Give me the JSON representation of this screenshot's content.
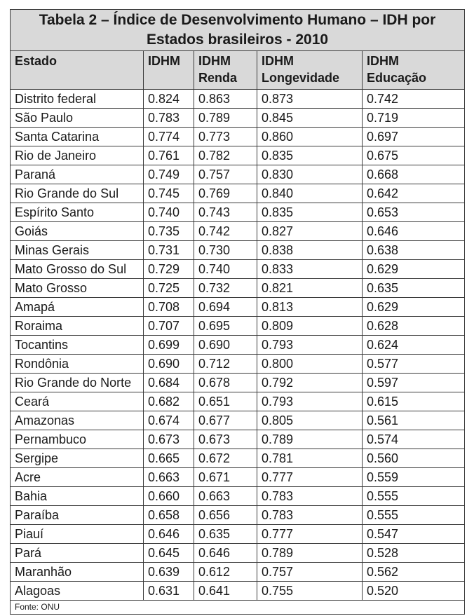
{
  "table": {
    "title": "Tabela 2 – Índice de Desenvolvimento Humano – IDH por Estados brasileiros - 2010",
    "headers": [
      {
        "line1": "Estado",
        "line2": ""
      },
      {
        "line1": "IDHM",
        "line2": ""
      },
      {
        "line1": "IDHM",
        "line2": "Renda"
      },
      {
        "line1": "IDHM",
        "line2": "Longevidade"
      },
      {
        "line1": "IDHM",
        "line2": "Educação"
      }
    ],
    "rows": [
      [
        "Distrito federal",
        "0.824",
        "0.863",
        "0.873",
        "0.742"
      ],
      [
        "São Paulo",
        "0.783",
        "0.789",
        "0.845",
        "0.719"
      ],
      [
        "Santa Catarina",
        "0.774",
        "0.773",
        "0.860",
        "0.697"
      ],
      [
        "Rio de Janeiro",
        "0.761",
        "0.782",
        "0.835",
        "0.675"
      ],
      [
        "Paraná",
        "0.749",
        "0.757",
        "0.830",
        "0.668"
      ],
      [
        "Rio Grande do Sul",
        "0.745",
        "0.769",
        "0.840",
        "0.642"
      ],
      [
        "Espírito Santo",
        "0.740",
        "0.743",
        "0.835",
        "0.653"
      ],
      [
        "Goiás",
        "0.735",
        "0.742",
        "0.827",
        "0.646"
      ],
      [
        "Minas Gerais",
        "0.731",
        "0.730",
        "0.838",
        "0.638"
      ],
      [
        "Mato Grosso do Sul",
        "0.729",
        "0.740",
        "0.833",
        "0.629"
      ],
      [
        "Mato Grosso",
        "0.725",
        "0.732",
        "0.821",
        "0.635"
      ],
      [
        "Amapá",
        "0.708",
        "0.694",
        "0.813",
        "0.629"
      ],
      [
        "Roraima",
        "0.707",
        "0.695",
        "0.809",
        "0.628"
      ],
      [
        "Tocantins",
        "0.699",
        "0.690",
        "0.793",
        "0.624"
      ],
      [
        "Rondônia",
        "0.690",
        "0.712",
        "0.800",
        "0.577"
      ],
      [
        "Rio Grande do Norte",
        "0.684",
        "0.678",
        "0.792",
        "0.597"
      ],
      [
        "Ceará",
        "0.682",
        "0.651",
        "0.793",
        "0.615"
      ],
      [
        "Amazonas",
        "0.674",
        "0.677",
        "0.805",
        "0.561"
      ],
      [
        "Pernambuco",
        "0.673",
        "0.673",
        "0.789",
        "0.574"
      ],
      [
        "Sergipe",
        "0.665",
        "0.672",
        "0.781",
        "0.560"
      ],
      [
        "Acre",
        "0.663",
        "0.671",
        "0.777",
        "0.559"
      ],
      [
        "Bahia",
        "0.660",
        "0.663",
        "0.783",
        "0.555"
      ],
      [
        "Paraíba",
        "0.658",
        "0.656",
        "0.783",
        "0.555"
      ],
      [
        "Piauí",
        "0.646",
        "0.635",
        "0.777",
        "0.547"
      ],
      [
        "Pará",
        "0.645",
        "0.646",
        "0.789",
        "0.528"
      ],
      [
        "Maranhão",
        "0.639",
        "0.612",
        "0.757",
        "0.562"
      ],
      [
        "Alagoas",
        "0.631",
        "0.641",
        "0.755",
        "0.520"
      ]
    ],
    "source": "Fonte: ONU",
    "colors": {
      "header_bg": "#d9d9d9",
      "border": "#3a3a3a",
      "text": "#1a1a1a"
    }
  }
}
